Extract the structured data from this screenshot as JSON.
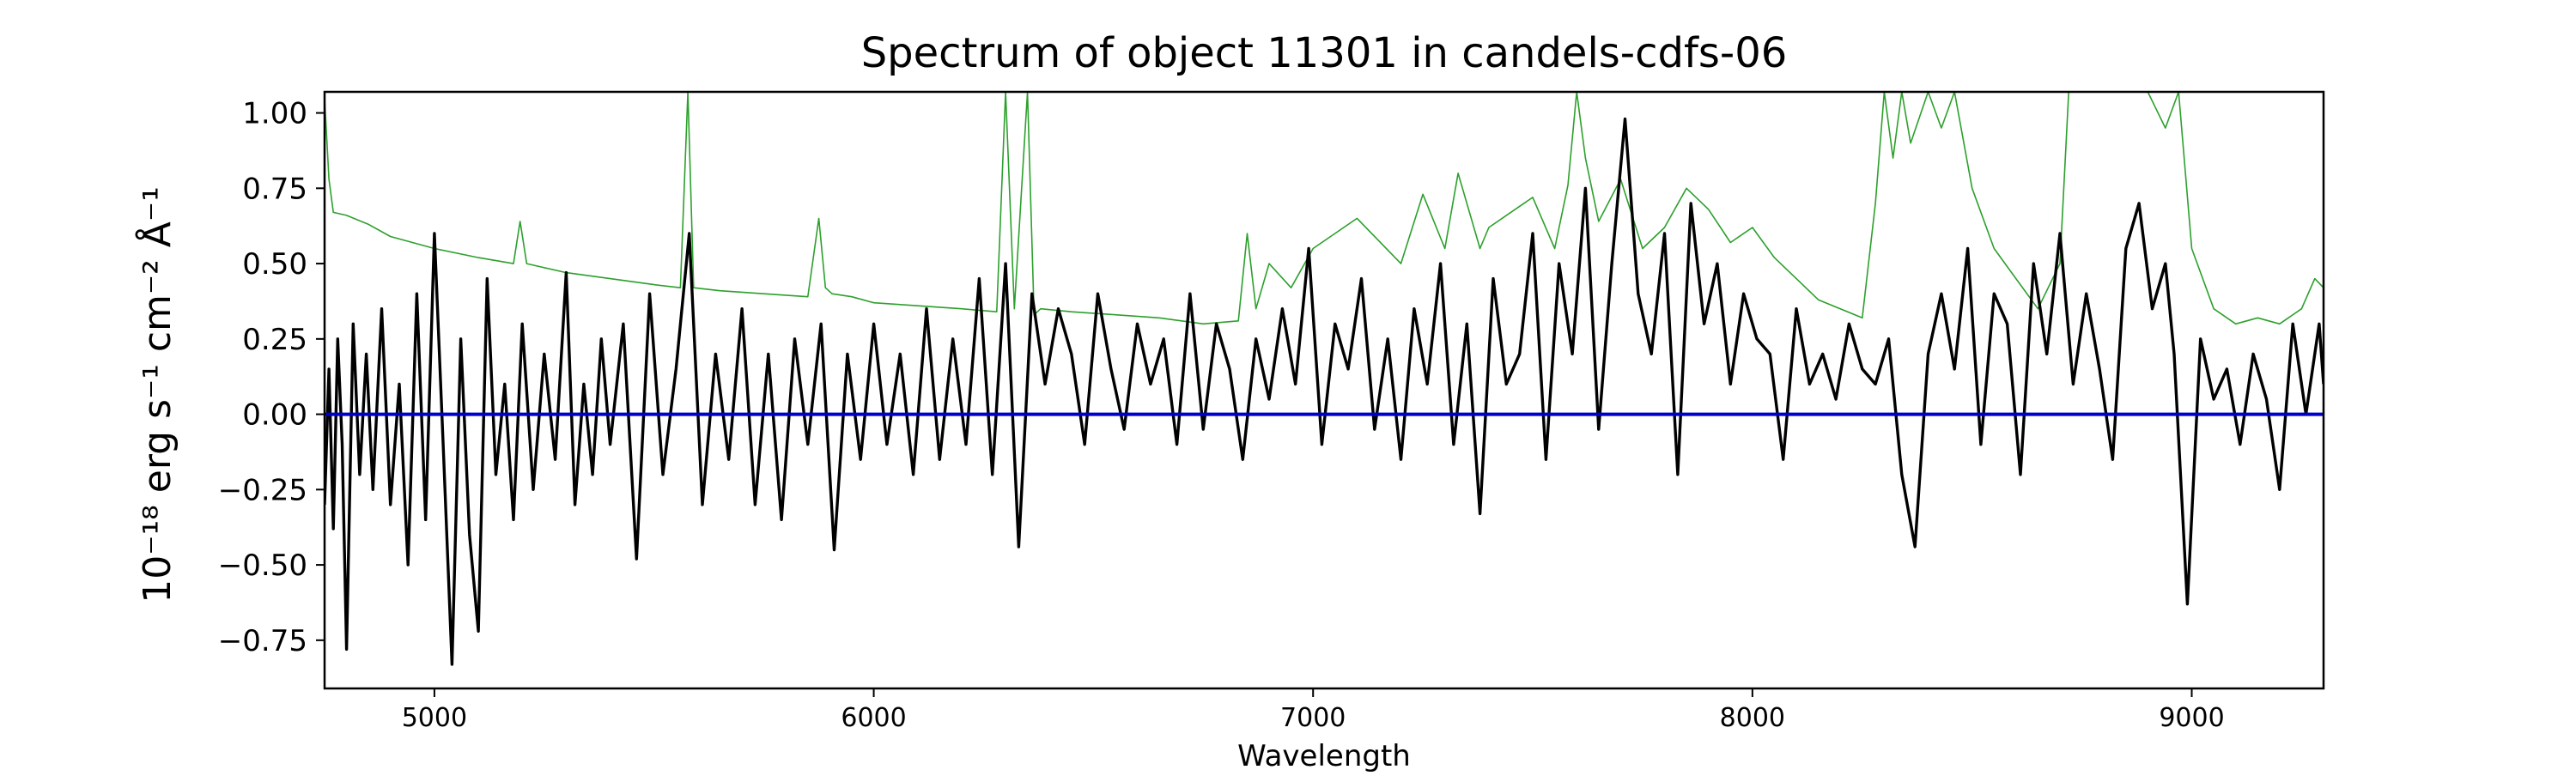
{
  "chart_data": {
    "type": "line",
    "title": "Spectrum of object 11301 in candels-cdfs-06",
    "xlabel": "Wavelength",
    "ylabel": "10⁻¹⁸ erg s⁻¹ cm⁻² Å⁻¹",
    "xlim": [
      4750,
      9300
    ],
    "ylim": [
      -0.91,
      1.07
    ],
    "xticks": [
      5000,
      6000,
      7000,
      8000,
      9000
    ],
    "xtick_labels": [
      "5000",
      "6000",
      "7000",
      "8000",
      "9000"
    ],
    "yticks": [
      -0.75,
      -0.5,
      -0.25,
      0.0,
      0.25,
      0.5,
      0.75,
      1.0
    ],
    "ytick_labels": [
      "−0.75",
      "−0.50",
      "−0.25",
      "0.00",
      "0.25",
      "0.50",
      "0.75",
      "1.00"
    ],
    "grid": false,
    "series": [
      {
        "role": "sky",
        "color": "#2ca02c",
        "x": [
          4750,
          4760,
          4770,
          4800,
          4850,
          4900,
          5000,
          5100,
          5180,
          5195,
          5210,
          5300,
          5400,
          5500,
          5560,
          5577,
          5590,
          5650,
          5750,
          5850,
          5875,
          5890,
          5905,
          5950,
          6000,
          6100,
          6200,
          6280,
          6300,
          6320,
          6350,
          6365,
          6380,
          6450,
          6550,
          6650,
          6750,
          6830,
          6850,
          6870,
          6900,
          6950,
          7000,
          7100,
          7200,
          7250,
          7300,
          7330,
          7380,
          7400,
          7500,
          7550,
          7580,
          7600,
          7620,
          7650,
          7700,
          7750,
          7800,
          7850,
          7900,
          7950,
          8000,
          8050,
          8100,
          8150,
          8200,
          8250,
          8280,
          8300,
          8320,
          8340,
          8360,
          8400,
          8430,
          8460,
          8500,
          8550,
          8600,
          8650,
          8700,
          8720,
          8760,
          8790,
          8820,
          8850,
          8880,
          8900,
          8940,
          8970,
          9000,
          9050,
          9100,
          9150,
          9200,
          9250,
          9280,
          9300
        ],
        "values": [
          1.05,
          0.78,
          0.67,
          0.66,
          0.63,
          0.59,
          0.55,
          0.52,
          0.5,
          0.64,
          0.5,
          0.47,
          0.45,
          0.43,
          0.42,
          1.07,
          0.42,
          0.41,
          0.4,
          0.39,
          0.65,
          0.42,
          0.4,
          0.39,
          0.37,
          0.36,
          0.35,
          0.34,
          1.07,
          0.35,
          1.07,
          0.33,
          0.35,
          0.34,
          0.33,
          0.32,
          0.3,
          0.31,
          0.6,
          0.35,
          0.5,
          0.42,
          0.55,
          0.65,
          0.5,
          0.73,
          0.55,
          0.8,
          0.55,
          0.62,
          0.72,
          0.55,
          0.76,
          1.07,
          0.85,
          0.64,
          0.78,
          0.55,
          0.62,
          0.75,
          0.68,
          0.57,
          0.62,
          0.52,
          0.45,
          0.38,
          0.35,
          0.32,
          0.7,
          1.07,
          0.85,
          1.07,
          0.9,
          1.07,
          0.95,
          1.07,
          0.75,
          0.55,
          0.45,
          0.35,
          0.5,
          1.07,
          1.07,
          1.07,
          1.07,
          1.07,
          1.07,
          1.07,
          0.95,
          1.07,
          0.55,
          0.35,
          0.3,
          0.32,
          0.3,
          0.35,
          0.45,
          0.42
        ]
      },
      {
        "role": "flux",
        "color": "#000000",
        "x": [
          4750,
          4760,
          4770,
          4780,
          4790,
          4800,
          4815,
          4830,
          4845,
          4860,
          4880,
          4900,
          4920,
          4940,
          4960,
          4980,
          5000,
          5020,
          5040,
          5060,
          5080,
          5100,
          5120,
          5140,
          5160,
          5180,
          5200,
          5225,
          5250,
          5275,
          5300,
          5320,
          5340,
          5360,
          5380,
          5400,
          5430,
          5460,
          5490,
          5520,
          5550,
          5580,
          5610,
          5640,
          5670,
          5700,
          5730,
          5760,
          5790,
          5820,
          5850,
          5880,
          5910,
          5940,
          5970,
          6000,
          6030,
          6060,
          6090,
          6120,
          6150,
          6180,
          6210,
          6240,
          6270,
          6300,
          6330,
          6360,
          6390,
          6420,
          6450,
          6480,
          6510,
          6540,
          6570,
          6600,
          6630,
          6660,
          6690,
          6720,
          6750,
          6780,
          6810,
          6840,
          6870,
          6900,
          6930,
          6960,
          6990,
          7020,
          7050,
          7080,
          7110,
          7140,
          7170,
          7200,
          7230,
          7260,
          7290,
          7320,
          7350,
          7380,
          7410,
          7440,
          7470,
          7500,
          7530,
          7560,
          7590,
          7620,
          7650,
          7680,
          7710,
          7740,
          7770,
          7800,
          7830,
          7860,
          7890,
          7920,
          7950,
          7980,
          8010,
          8040,
          8070,
          8100,
          8130,
          8160,
          8190,
          8220,
          8250,
          8280,
          8310,
          8340,
          8370,
          8400,
          8430,
          8460,
          8490,
          8520,
          8550,
          8580,
          8610,
          8640,
          8670,
          8700,
          8730,
          8760,
          8790,
          8820,
          8850,
          8880,
          8910,
          8940,
          8960,
          8990,
          9020,
          9050,
          9080,
          9110,
          9140,
          9170,
          9200,
          9230,
          9260,
          9290,
          9300
        ],
        "values": [
          -0.3,
          0.15,
          -0.38,
          0.25,
          -0.1,
          -0.78,
          0.3,
          -0.2,
          0.2,
          -0.25,
          0.35,
          -0.3,
          0.1,
          -0.5,
          0.4,
          -0.35,
          0.6,
          -0.1,
          -0.83,
          0.25,
          -0.4,
          -0.72,
          0.45,
          -0.2,
          0.1,
          -0.35,
          0.3,
          -0.25,
          0.2,
          -0.15,
          0.47,
          -0.3,
          0.1,
          -0.2,
          0.25,
          -0.1,
          0.3,
          -0.48,
          0.4,
          -0.2,
          0.15,
          0.6,
          -0.3,
          0.2,
          -0.15,
          0.35,
          -0.3,
          0.2,
          -0.35,
          0.25,
          -0.1,
          0.3,
          -0.45,
          0.2,
          -0.15,
          0.3,
          -0.1,
          0.2,
          -0.2,
          0.35,
          -0.15,
          0.25,
          -0.1,
          0.45,
          -0.2,
          0.5,
          -0.44,
          0.4,
          0.1,
          0.35,
          0.2,
          -0.1,
          0.4,
          0.15,
          -0.05,
          0.3,
          0.1,
          0.25,
          -0.1,
          0.4,
          -0.05,
          0.3,
          0.15,
          -0.15,
          0.25,
          0.05,
          0.35,
          0.1,
          0.55,
          -0.1,
          0.3,
          0.15,
          0.45,
          -0.05,
          0.25,
          -0.15,
          0.35,
          0.1,
          0.5,
          -0.1,
          0.3,
          -0.33,
          0.45,
          0.1,
          0.2,
          0.6,
          -0.15,
          0.5,
          0.2,
          0.75,
          -0.05,
          0.5,
          0.98,
          0.4,
          0.2,
          0.6,
          -0.2,
          0.7,
          0.3,
          0.5,
          0.1,
          0.4,
          0.25,
          0.2,
          -0.15,
          0.35,
          0.1,
          0.2,
          0.05,
          0.3,
          0.15,
          0.1,
          0.25,
          -0.2,
          -0.44,
          0.2,
          0.4,
          0.15,
          0.55,
          -0.1,
          0.4,
          0.3,
          -0.2,
          0.5,
          0.2,
          0.6,
          0.1,
          0.4,
          0.15,
          -0.15,
          0.55,
          0.7,
          0.35,
          0.5,
          0.2,
          -0.63,
          0.25,
          0.05,
          0.15,
          -0.1,
          0.2,
          0.05,
          -0.25,
          0.3,
          0.0,
          0.3,
          0.1
        ]
      },
      {
        "role": "zero",
        "color": "#0000cc",
        "x": [
          4750,
          9300
        ],
        "values": [
          0.0,
          0.0
        ]
      }
    ]
  }
}
